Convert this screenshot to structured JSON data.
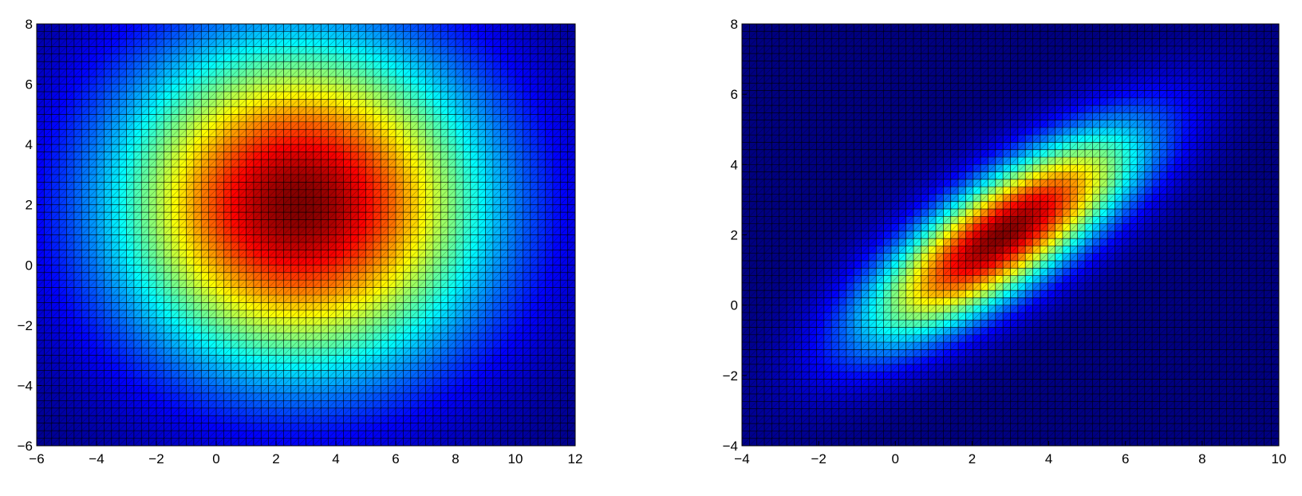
{
  "chart_data": [
    {
      "type": "heatmap",
      "title": "",
      "xlabel": "",
      "ylabel": "",
      "xlim": [
        -6,
        12
      ],
      "ylim": [
        -6,
        8
      ],
      "xticks": [
        -6,
        -4,
        -2,
        0,
        2,
        4,
        6,
        8,
        10,
        12
      ],
      "yticks": [
        -6,
        -4,
        -2,
        0,
        2,
        4,
        6,
        8
      ],
      "xtick_labels": [
        "−6",
        "−4",
        "−2",
        "0",
        "2",
        "4",
        "6",
        "8",
        "10",
        "12"
      ],
      "ytick_labels": [
        "−6",
        "−4",
        "−2",
        "0",
        "2",
        "4",
        "6",
        "8"
      ],
      "grid": "triangulated mesh (black edges)",
      "colormap": "jet",
      "surface": {
        "kind": "gaussian",
        "mean": [
          2.8,
          2.0
        ],
        "sigma_x": 4.3,
        "sigma_y": 3.8,
        "correlation": 0.0
      }
    },
    {
      "type": "heatmap",
      "title": "",
      "xlabel": "",
      "ylabel": "",
      "xlim": [
        -4,
        10
      ],
      "ylim": [
        -4,
        8
      ],
      "xticks": [
        -4,
        -2,
        0,
        2,
        4,
        6,
        8,
        10
      ],
      "yticks": [
        -4,
        -2,
        0,
        2,
        4,
        6,
        8
      ],
      "xtick_labels": [
        "−4",
        "−2",
        "0",
        "2",
        "4",
        "6",
        "8",
        "10"
      ],
      "ytick_labels": [
        "−4",
        "−2",
        "0",
        "2",
        "4",
        "6",
        "8"
      ],
      "grid": "triangulated mesh (black edges)",
      "colormap": "jet",
      "surface": {
        "kind": "gaussian",
        "mean": [
          2.8,
          2.0
        ],
        "sigma_x": 2.4,
        "sigma_y": 2.0,
        "correlation": 0.78
      }
    }
  ]
}
